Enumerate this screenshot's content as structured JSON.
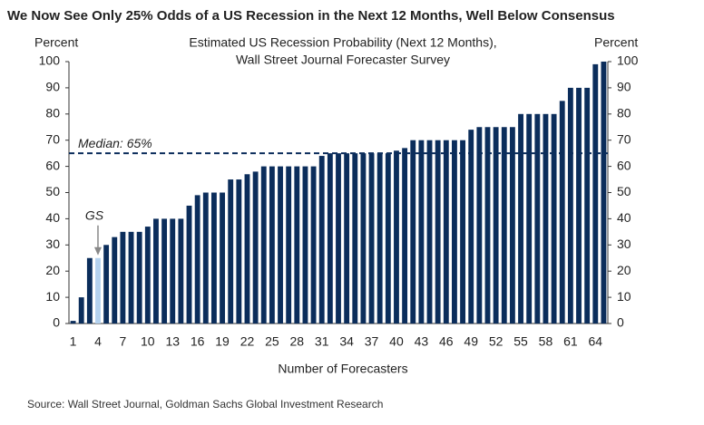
{
  "chart_data": {
    "type": "bar",
    "title": "We Now See Only 25% Odds of a US Recession in the Next 12 Months, Well Below Consensus",
    "subtitle": [
      "Estimated US Recession Probability (Next 12 Months),",
      "Wall Street Journal Forecaster Survey"
    ],
    "ylabel": "Percent",
    "y2label": "Percent",
    "xlabel": "Number of Forecasters",
    "source": "Source: Wall Street Journal, Goldman Sachs Global Investment Research",
    "categories": [
      1,
      null,
      null,
      4,
      null,
      null,
      7,
      null,
      null,
      10,
      null,
      null,
      13,
      null,
      null,
      16,
      null,
      null,
      19,
      null,
      null,
      22,
      null,
      null,
      25,
      null,
      null,
      28,
      null,
      null,
      31,
      null,
      null,
      34,
      null,
      null,
      37,
      null,
      null,
      40,
      null,
      null,
      43,
      null,
      null,
      46,
      null,
      null,
      49,
      null,
      null,
      52,
      null,
      null,
      55,
      null,
      null,
      58,
      null,
      null,
      61,
      null,
      null,
      64,
      null
    ],
    "values": [
      1,
      10,
      25,
      25,
      30,
      33,
      35,
      35,
      35,
      37,
      40,
      40,
      40,
      40,
      45,
      49,
      50,
      50,
      50,
      55,
      55,
      57,
      58,
      60,
      60,
      60,
      60,
      60,
      60,
      60,
      64,
      65,
      65,
      65,
      65,
      65,
      65,
      65,
      65,
      66,
      67,
      70,
      70,
      70,
      70,
      70,
      70,
      70,
      74,
      75,
      75,
      75,
      75,
      75,
      80,
      80,
      80,
      80,
      80,
      85,
      90,
      90,
      90,
      99,
      100
    ],
    "color": "#0b2d5b",
    "ylim": [
      0,
      100
    ],
    "yticks": [
      0,
      10,
      20,
      30,
      40,
      50,
      60,
      70,
      80,
      90,
      100
    ],
    "y2lim": [
      0,
      100
    ],
    "y2ticks": [
      0,
      10,
      20,
      30,
      40,
      50,
      60,
      70,
      80,
      90,
      100
    ],
    "median": {
      "text": "Median:  65%",
      "value": 65
    },
    "highlight": {
      "text": "GS",
      "x": 4,
      "color": "#b4d2ef"
    }
  }
}
